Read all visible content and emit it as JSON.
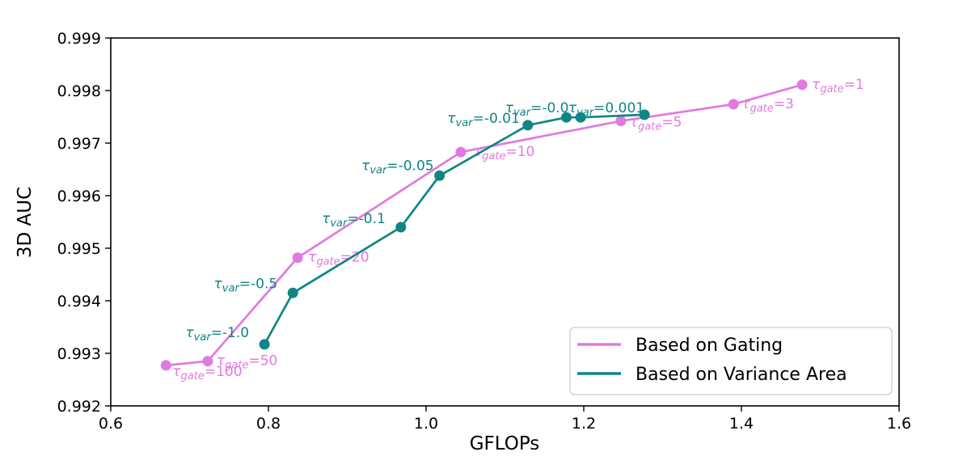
{
  "chart_data": {
    "type": "line",
    "title": "",
    "xlabel": "GFLOPs",
    "ylabel": "3D AUC",
    "xlim": [
      0.6,
      1.6
    ],
    "ylim": [
      0.992,
      0.999
    ],
    "x_tick_labels": [
      "0.6",
      "0.8",
      "1.0",
      "1.2",
      "1.4",
      "1.6"
    ],
    "y_tick_labels": [
      "0.992",
      "0.993",
      "0.994",
      "0.995",
      "0.996",
      "0.997",
      "0.998",
      "0.999"
    ],
    "grid": false,
    "legend_position": "lower right",
    "series": [
      {
        "name": "Based on Gating",
        "color": "#e07ae0",
        "tau_symbol": "τ",
        "tau_subscript": "gate",
        "points": [
          {
            "x": 0.67,
            "y": 0.99277,
            "label": "τ_gate=100",
            "value": "=100",
            "dx": 8,
            "dy": 13,
            "anchor": "start"
          },
          {
            "x": 0.723,
            "y": 0.99285,
            "label": "τ_gate=50",
            "value": "=50",
            "dx": 11,
            "dy": 5,
            "anchor": "start"
          },
          {
            "x": 0.837,
            "y": 0.99482,
            "label": "τ_gate=20",
            "value": "=20",
            "dx": 13,
            "dy": 5,
            "anchor": "start"
          },
          {
            "x": 1.044,
            "y": 0.99683,
            "label": "τ_gate=10",
            "value": "=10",
            "dx": 16,
            "dy": 5,
            "anchor": "start"
          },
          {
            "x": 1.247,
            "y": 0.99742,
            "label": "τ_gate=5",
            "value": "=5",
            "dx": 11,
            "dy": 7,
            "anchor": "start"
          },
          {
            "x": 1.39,
            "y": 0.99774,
            "label": "τ_gate=3",
            "value": "=3",
            "dx": 10,
            "dy": 5,
            "anchor": "start"
          },
          {
            "x": 1.477,
            "y": 0.99811,
            "label": "τ_gate=1",
            "value": "=1",
            "dx": 12,
            "dy": 5,
            "anchor": "start"
          }
        ]
      },
      {
        "name": "Based on Variance Area",
        "color": "#0f8585",
        "tau_symbol": "τ",
        "tau_subscript": "var",
        "points": [
          {
            "x": 0.795,
            "y": 0.99317,
            "label": "τ_var=-1.0",
            "value": "=-1.0",
            "dx": -19,
            "dy": -9,
            "anchor": "end"
          },
          {
            "x": 0.831,
            "y": 0.99415,
            "label": "τ_var=-0.5",
            "value": "=-0.5",
            "dx": -19,
            "dy": -6,
            "anchor": "end"
          },
          {
            "x": 0.968,
            "y": 0.9954,
            "label": "τ_var=-0.1",
            "value": "=-0.1",
            "dx": -19,
            "dy": -5,
            "anchor": "end"
          },
          {
            "x": 1.017,
            "y": 0.99638,
            "label": "τ_var=-0.05",
            "value": "=-0.05",
            "dx": -7,
            "dy": -7,
            "anchor": "end"
          },
          {
            "x": 1.129,
            "y": 0.99734,
            "label": "τ_var=-0.01",
            "value": "=-0.01",
            "dx": -10,
            "dy": -3,
            "anchor": "end"
          },
          {
            "x": 1.178,
            "y": 0.99749,
            "label": "τ_var=-0.0",
            "value": "=-0.0",
            "dx": 3,
            "dy": -6,
            "anchor": "end"
          },
          {
            "x": 1.196,
            "y": 0.99749,
            "label": null
          },
          {
            "x": 1.277,
            "y": 0.99754,
            "label": "τ_var=0.001",
            "value": "=0.001",
            "dx": 0,
            "dy": -3,
            "anchor": "end"
          }
        ]
      }
    ]
  },
  "legend": {
    "entries": [
      {
        "label": "Based on Gating",
        "color": "#e07ae0"
      },
      {
        "label": "Based on Variance Area",
        "color": "#0f8585"
      }
    ]
  },
  "style": {
    "axis_color": "#000000",
    "background": "#ffffff",
    "legend_border": "#cccccc"
  }
}
